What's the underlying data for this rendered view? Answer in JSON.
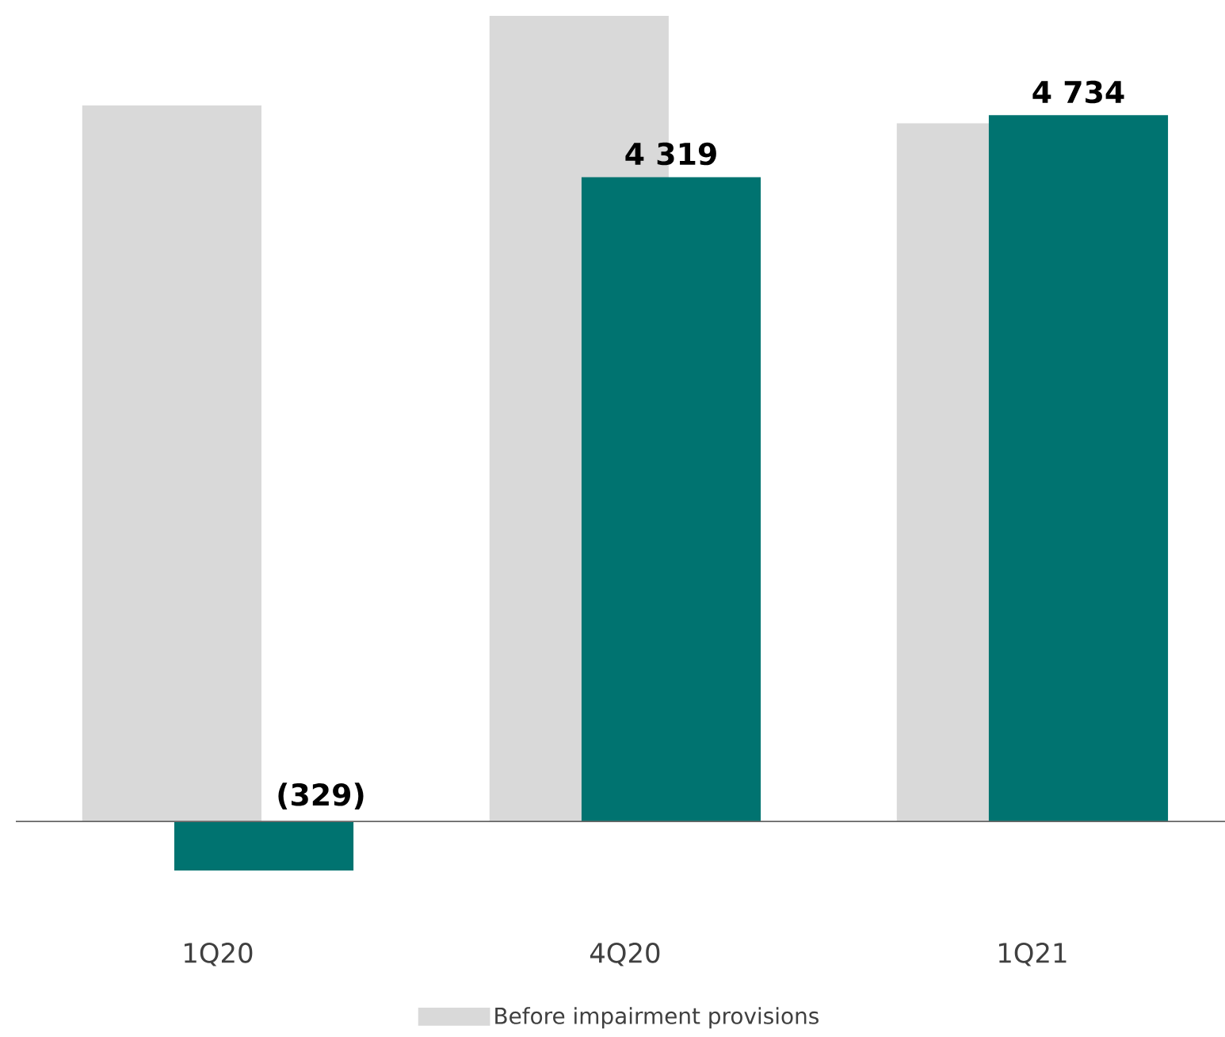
{
  "chart_data": {
    "type": "bar",
    "categories": [
      "1Q20",
      "4Q20",
      "1Q21"
    ],
    "series": [
      {
        "name": "Before impairment provisions",
        "color": "#d9d9d9",
        "values": [
          4800,
          5400,
          4680
        ]
      },
      {
        "color": "#007370",
        "values": [
          -329,
          4319,
          4734
        ],
        "value_labels": [
          "(329)",
          "4 319",
          "4 734"
        ]
      }
    ],
    "legend": "bottom",
    "tick_labels": "x"
  }
}
